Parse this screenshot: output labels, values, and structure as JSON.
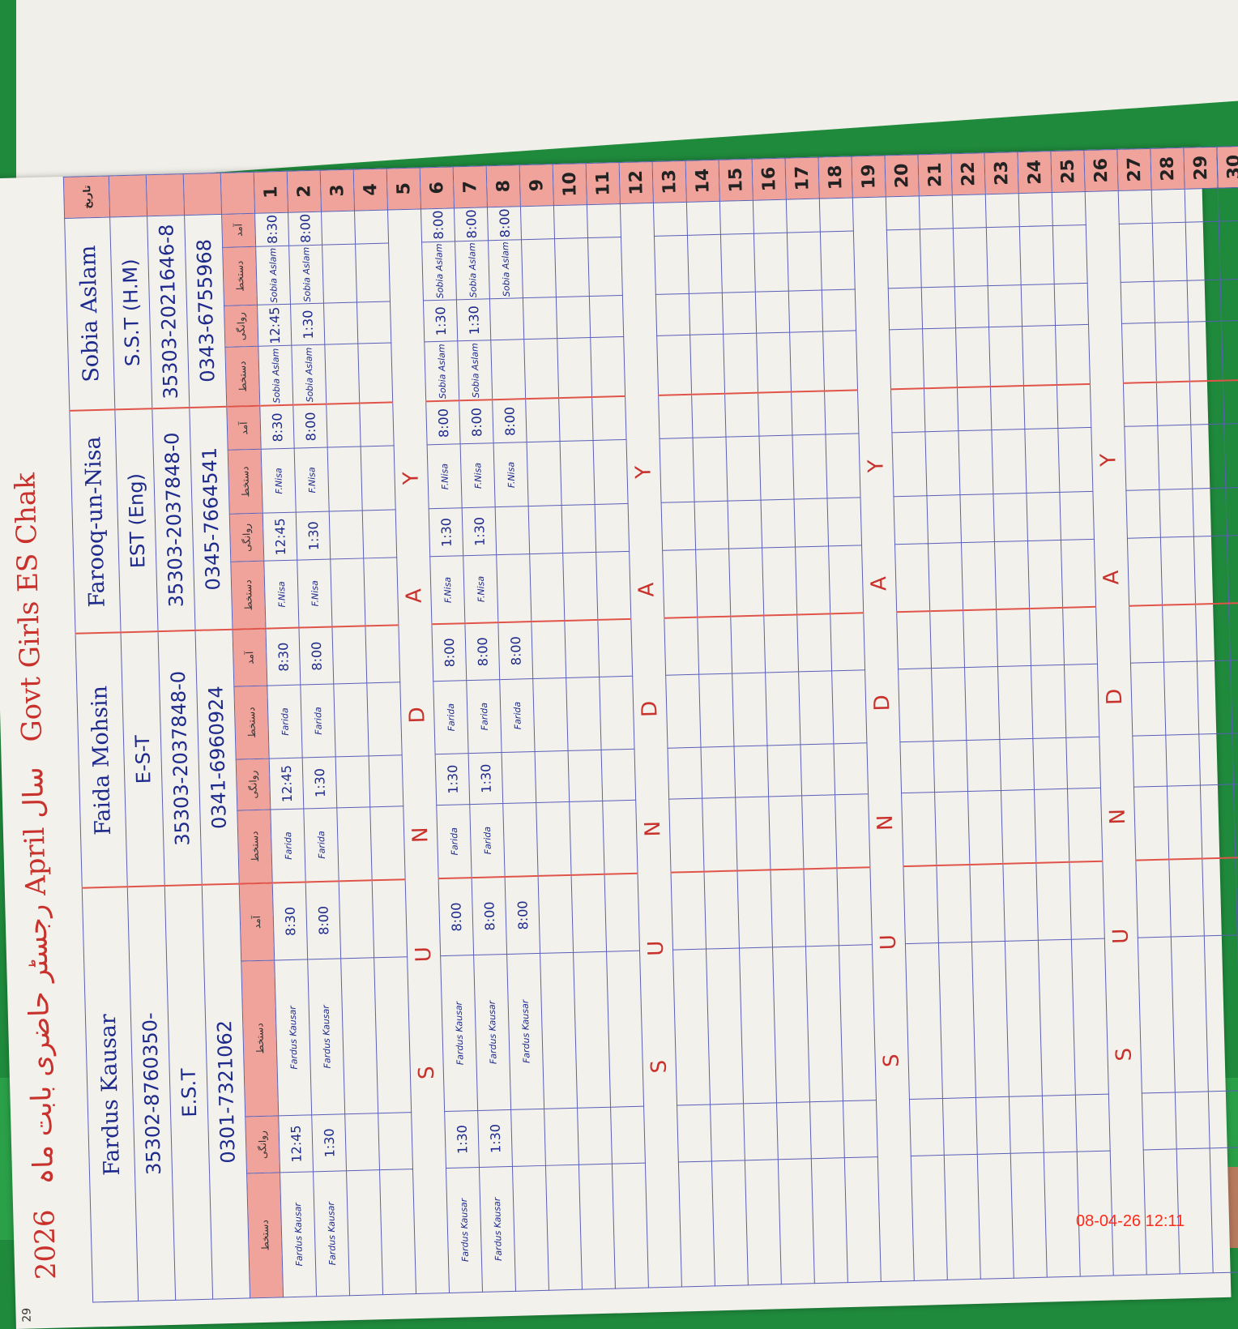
{
  "register": {
    "title_year": "2026",
    "title_text": "رجسٹر حاضری بابت ماہ April سال",
    "school": "Govt Girls ES Chak",
    "page_number": "29",
    "sub_headers": [
      "دستخط",
      "روانگی",
      "دستخط",
      "آمد"
    ],
    "teachers": [
      {
        "name": "Fardus Kausar",
        "cnic": "35302-8760350-",
        "designation": "E.S.T",
        "phone": "0301-7321062"
      },
      {
        "name": "Faida Mohsin",
        "designation": "E-S-T",
        "cnic": "35303-2037848-0",
        "phone": "0341-6960924"
      },
      {
        "name": "Farooq-un-Nisa",
        "designation": "EST (Eng)",
        "cnic": "35303-2037848-0",
        "phone": "0345-7664541"
      },
      {
        "name": "Sobia Aslam",
        "designation": "S.S.T (H.M)",
        "cnic": "35303-2021646-8",
        "phone": "0343-6755968"
      }
    ],
    "date_header": "تاریخ",
    "days": [
      "1",
      "2",
      "3",
      "4",
      "5",
      "6",
      "7",
      "8",
      "9",
      "10",
      "11",
      "12",
      "13",
      "14",
      "15",
      "16",
      "17",
      "18",
      "19",
      "20",
      "21",
      "22",
      "23",
      "24",
      "25",
      "26",
      "27",
      "28",
      "29",
      "30"
    ],
    "sunday_label": "S U N D A Y",
    "sunday_days": [
      "5",
      "12",
      "19",
      "26"
    ],
    "entries": {
      "1": [
        [
          "Fardus Kausar",
          "12:45",
          "Fardus Kausar",
          "8:30"
        ],
        [
          "Farida",
          "12:45",
          "Farida",
          "8:30"
        ],
        [
          "F.Nisa",
          "12:45",
          "F.Nisa",
          "8:30"
        ],
        [
          "Sobia Aslam",
          "12:45",
          "Sobia Aslam",
          "8:30"
        ]
      ],
      "2": [
        [
          "Fardus Kausar",
          "1:30",
          "Fardus Kausar",
          "8:00"
        ],
        [
          "Farida",
          "1:30",
          "Farida",
          "8:00"
        ],
        [
          "F.Nisa",
          "1:30",
          "F.Nisa",
          "8:00"
        ],
        [
          "Sobia Aslam",
          "1:30",
          "Sobia Aslam",
          "8:00"
        ]
      ],
      "6": [
        [
          "Fardus Kausar",
          "1:30",
          "Fardus Kausar",
          "8:00"
        ],
        [
          "Farida",
          "1:30",
          "Farida",
          "8:00"
        ],
        [
          "F.Nisa",
          "1:30",
          "F.Nisa",
          "8:00"
        ],
        [
          "Sobia Aslam",
          "1:30",
          "Sobia Aslam",
          "8:00"
        ]
      ],
      "7": [
        [
          "Fardus Kausar",
          "1:30",
          "Fardus Kausar",
          "8:00"
        ],
        [
          "Farida",
          "1:30",
          "Farida",
          "8:00"
        ],
        [
          "F.Nisa",
          "1:30",
          "F.Nisa",
          "8:00"
        ],
        [
          "Sobia Aslam",
          "1:30",
          "Sobia Aslam",
          "8:00"
        ]
      ],
      "8": [
        [
          "",
          "",
          "Fardus Kausar",
          "8:00"
        ],
        [
          "",
          "",
          "Farida",
          "8:00"
        ],
        [
          "",
          "",
          "F.Nisa",
          "8:00"
        ],
        [
          "",
          "",
          "Sobia Aslam",
          "8:00"
        ]
      ]
    }
  },
  "camera_timestamp": "08-04-26  12:11",
  "colors": {
    "ink": "#1d2a8c",
    "header_pink": "#f0a39a",
    "rule_red": "#e0544a",
    "cover_green": "#2aa048"
  }
}
